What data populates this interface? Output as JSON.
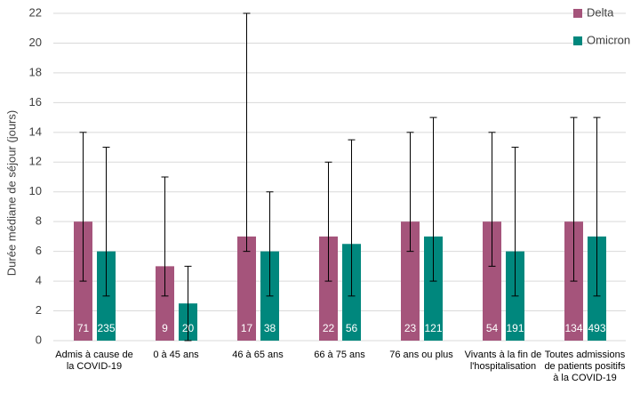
{
  "chart_data": {
    "type": "bar",
    "ylabel": "Durée médiane de séjour (jours)",
    "categories": [
      "Admis à cause de la COVID-19",
      "0 à 45 ans",
      "46 à 65 ans",
      "66 à 75 ans",
      "76 ans ou plus",
      "Vivants à la fin de l'hospitalisation",
      "Toutes admissions de patients positifs à la COVID-19"
    ],
    "series": [
      {
        "name": "Delta",
        "color": "#a5547b",
        "values": [
          8,
          5,
          7,
          7,
          8,
          8,
          8
        ],
        "low": [
          4,
          3,
          6,
          4,
          6,
          5,
          4
        ],
        "high": [
          14,
          11,
          22,
          12,
          14,
          14,
          15
        ],
        "n": [
          71,
          9,
          17,
          22,
          23,
          54,
          134
        ]
      },
      {
        "name": "Omicron",
        "color": "#00877d",
        "values": [
          6,
          2.5,
          6,
          6.5,
          7,
          6,
          7
        ],
        "low": [
          3,
          0,
          3,
          3,
          4,
          3,
          3
        ],
        "high": [
          13,
          5,
          10,
          13.5,
          15,
          13,
          15
        ],
        "n": [
          235,
          20,
          38,
          56,
          121,
          191,
          493
        ]
      }
    ],
    "ylim": [
      0,
      22
    ],
    "yticks": [
      0,
      2,
      4,
      6,
      8,
      10,
      12,
      14,
      16,
      18,
      20,
      22
    ],
    "grid": true,
    "legend": "top-right"
  }
}
